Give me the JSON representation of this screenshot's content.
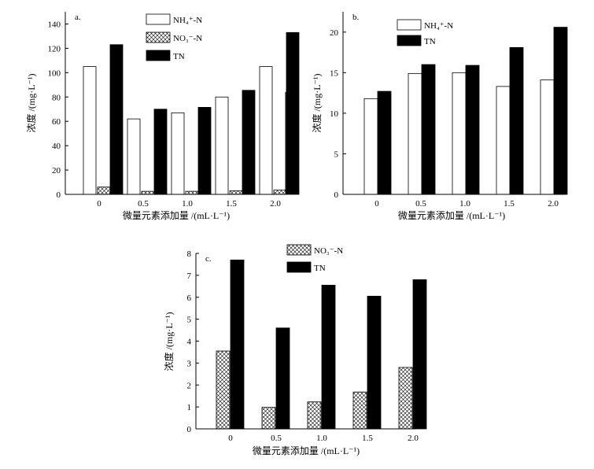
{
  "colors": {
    "nh4": "#ffffff",
    "no3": "crosshatch",
    "tn": "#000000",
    "axis": "#000000"
  },
  "chart_data": [
    {
      "type": "bar",
      "panel_label": "a.",
      "categories": [
        "0",
        "0.5",
        "1.0",
        "1.5",
        "2.0"
      ],
      "series": [
        {
          "key": "nh4",
          "name": "NH₄⁺-N",
          "values": [
            105,
            62,
            67,
            80,
            105
          ]
        },
        {
          "key": "no3",
          "name": "NO₃⁻-N",
          "values": [
            6,
            2.5,
            2.5,
            3,
            3.5
          ]
        },
        {
          "key": "tn",
          "name": "TN",
          "values": [
            123,
            70,
            71.5,
            85.5,
            133
          ]
        }
      ],
      "xlabel": "微量元素添加量 /(mL·L⁻¹)",
      "ylabel": "浓度 /(mg·L⁻¹)",
      "ylim": [
        0,
        150
      ],
      "yticks": [
        0,
        20,
        40,
        60,
        80,
        100,
        120,
        140
      ],
      "grid": false,
      "legend": "top-right"
    },
    {
      "type": "bar",
      "panel_label": "b.",
      "categories": [
        "0",
        "0.5",
        "1.0",
        "1.5",
        "2.0"
      ],
      "series": [
        {
          "key": "nh4",
          "name": "NH₄⁺-N",
          "values": [
            11.8,
            14.9,
            15.0,
            13.3,
            14.1
          ]
        },
        {
          "key": "tn",
          "name": "TN",
          "values": [
            12.7,
            16.0,
            15.9,
            18.1,
            20.6
          ]
        }
      ],
      "xlabel": "微量元素添加量 /(mL·L⁻¹)",
      "ylabel": "浓度 /(mg·L⁻¹)",
      "ylim": [
        0,
        22.5
      ],
      "yticks": [
        0,
        5,
        10,
        15,
        20
      ],
      "grid": false,
      "legend": "top-right"
    },
    {
      "type": "bar",
      "panel_label": "c.",
      "categories": [
        "0",
        "0.5",
        "1.0",
        "1.5",
        "2.0"
      ],
      "series": [
        {
          "key": "no3",
          "name": "NO₃⁻-N",
          "values": [
            3.55,
            0.98,
            1.23,
            1.68,
            2.8
          ]
        },
        {
          "key": "tn",
          "name": "TN",
          "values": [
            7.7,
            4.6,
            6.55,
            6.05,
            6.8
          ]
        }
      ],
      "xlabel": "微量元素添加量 /(mL·L⁻¹)",
      "ylabel": "浓度 /(mg·L⁻¹)",
      "ylim": [
        0,
        8
      ],
      "yticks": [
        0,
        1,
        2,
        3,
        4,
        5,
        6,
        7,
        8
      ],
      "grid": false,
      "legend": "top-left"
    }
  ]
}
